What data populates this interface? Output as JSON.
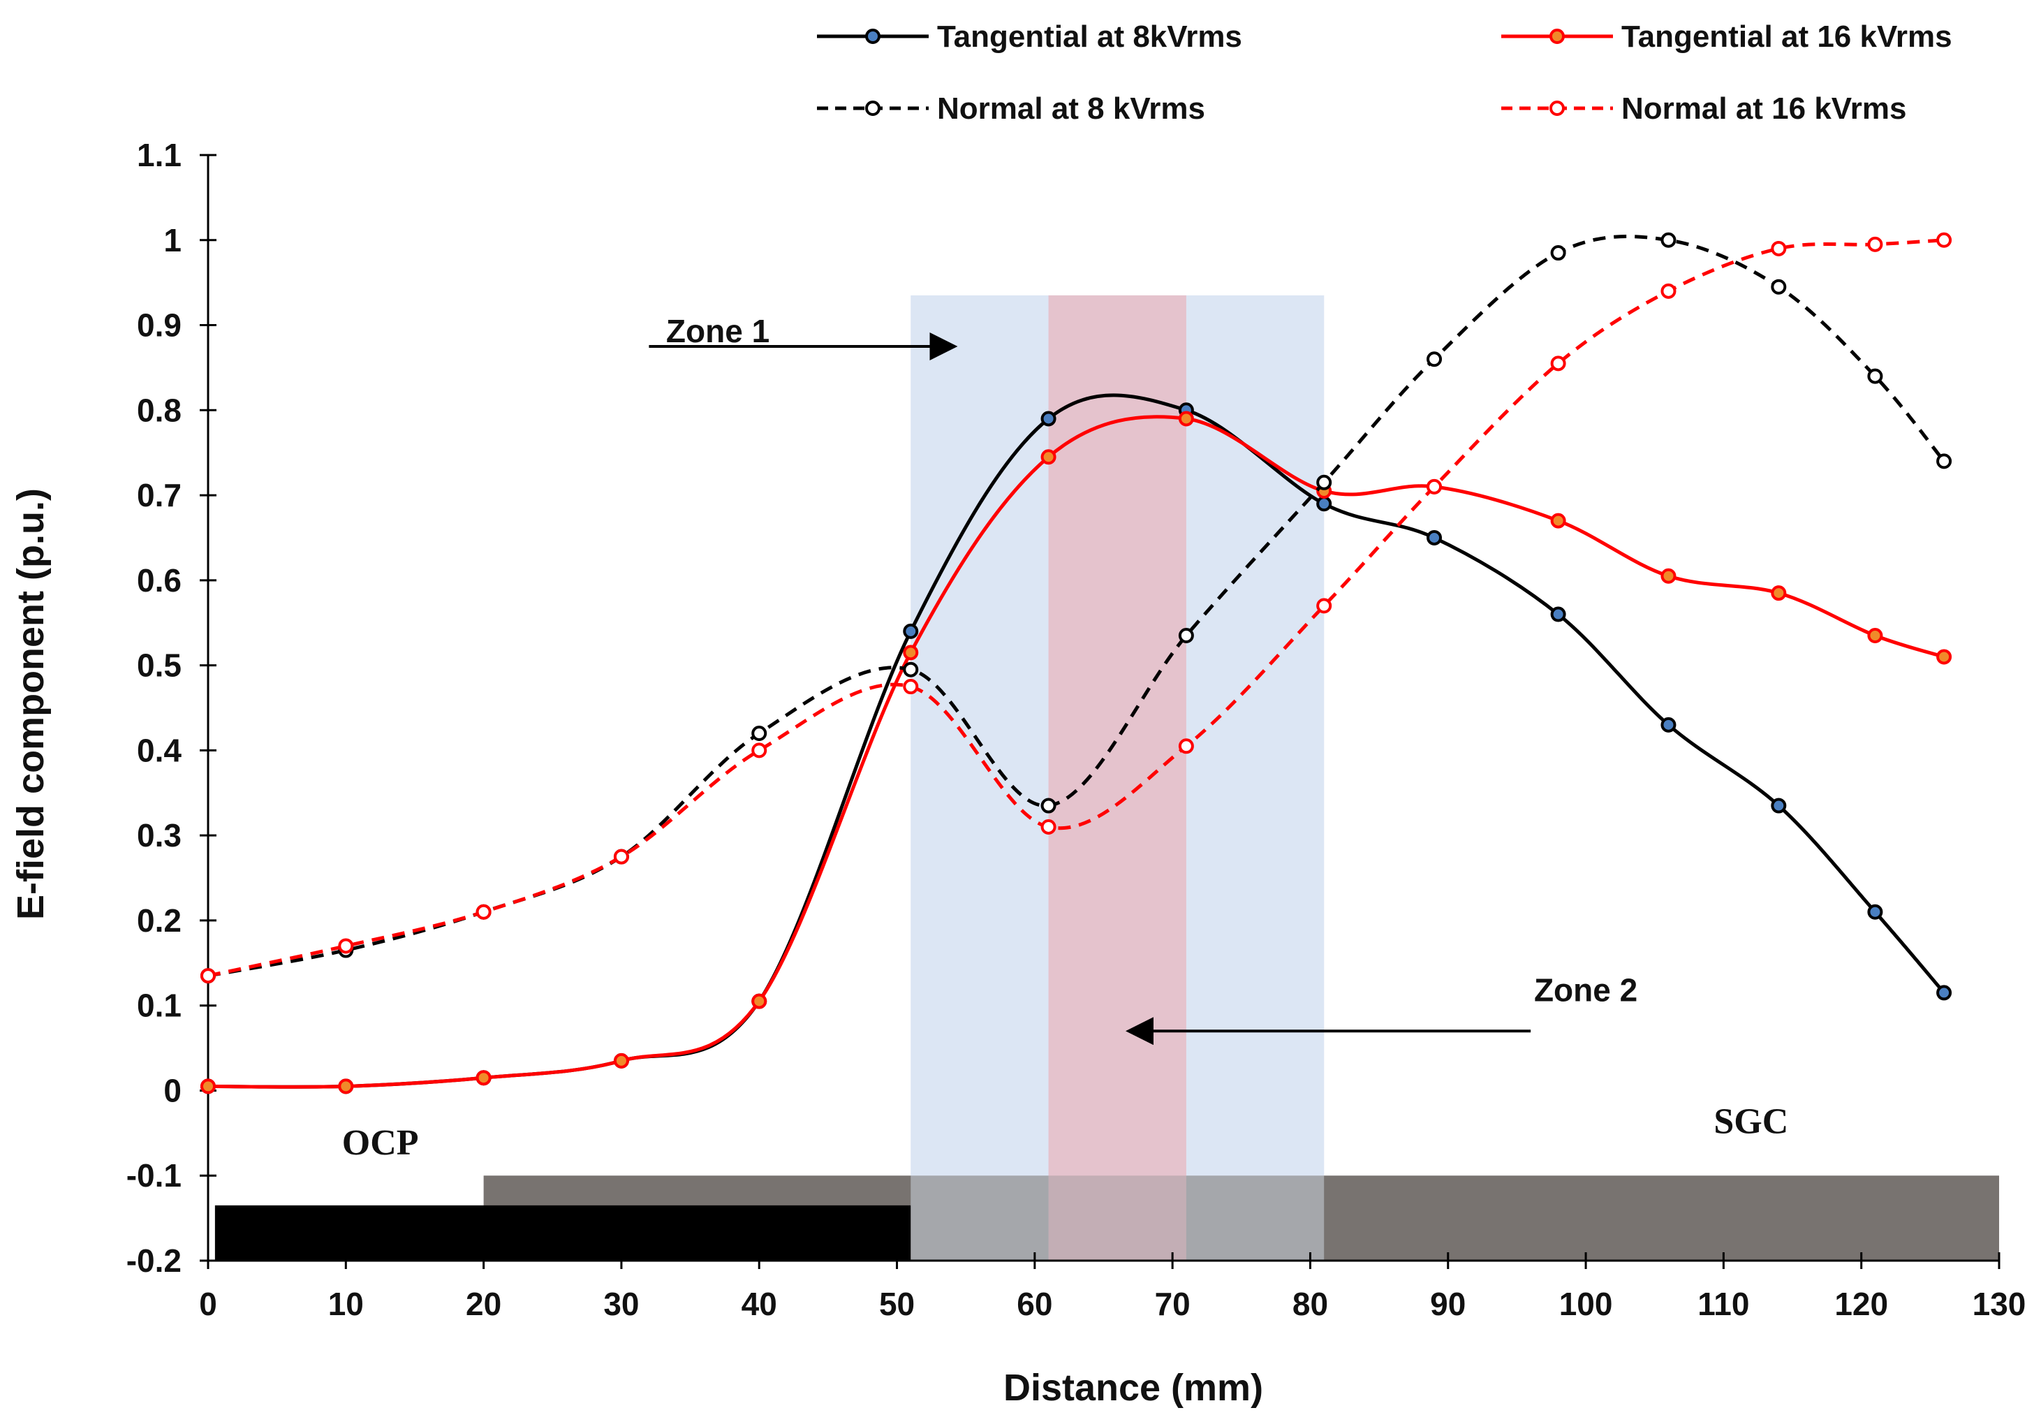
{
  "chart_data": {
    "type": "line",
    "title": "",
    "xlabel": "Distance (mm)",
    "ylabel": "E-field component (p.u.)",
    "xlim": [
      0,
      130
    ],
    "ylim": [
      -0.2,
      1.1
    ],
    "x_ticks": [
      "0",
      "10",
      "20",
      "30",
      "40",
      "50",
      "60",
      "70",
      "80",
      "90",
      "100",
      "110",
      "120",
      "130"
    ],
    "y_ticks": [
      "1.1",
      "1",
      "0.9",
      "0.8",
      "0.7",
      "0.6",
      "0.5",
      "0.4",
      "0.3",
      "0.2",
      "0.1",
      "0",
      "-0.1",
      "-0.2"
    ],
    "grid": false,
    "legend_position": "top",
    "series": [
      {
        "name": "Tangential at 8kVrms",
        "color": "#000000",
        "marker_fill": "#4a7fc1",
        "style": "solid",
        "x": [
          0,
          10,
          20,
          30,
          40,
          51,
          61,
          71,
          81,
          89,
          98,
          106,
          114,
          121,
          126
        ],
        "y": [
          0.005,
          0.005,
          0.015,
          0.035,
          0.105,
          0.54,
          0.79,
          0.8,
          0.69,
          0.65,
          0.56,
          0.43,
          0.335,
          0.21,
          0.115
        ]
      },
      {
        "name": "Tangential at 16 kVrms",
        "color": "#ff0000",
        "marker_fill": "#f08a2a",
        "style": "solid",
        "x": [
          0,
          10,
          20,
          30,
          40,
          51,
          61,
          71,
          81,
          89,
          98,
          106,
          114,
          121,
          126
        ],
        "y": [
          0.005,
          0.005,
          0.015,
          0.035,
          0.105,
          0.515,
          0.745,
          0.79,
          0.705,
          0.71,
          0.67,
          0.605,
          0.585,
          0.535,
          0.51
        ]
      },
      {
        "name": "Normal at 8 kVrms",
        "color": "#000000",
        "marker_fill": "#ffffff",
        "style": "dashed",
        "x": [
          0,
          10,
          20,
          30,
          40,
          51,
          61,
          71,
          81,
          89,
          98,
          106,
          114,
          121,
          126
        ],
        "y": [
          0.135,
          0.165,
          0.21,
          0.275,
          0.42,
          0.495,
          0.335,
          0.535,
          0.715,
          0.86,
          0.985,
          1.0,
          0.945,
          0.84,
          0.74
        ]
      },
      {
        "name": "Normal at 16 kVrms",
        "color": "#ff0000",
        "marker_fill": "#ffffff",
        "style": "dashed",
        "x": [
          0,
          10,
          20,
          30,
          40,
          51,
          61,
          71,
          81,
          89,
          98,
          106,
          114,
          121,
          126
        ],
        "y": [
          0.135,
          0.17,
          0.21,
          0.275,
          0.4,
          0.475,
          0.31,
          0.405,
          0.57,
          0.71,
          0.855,
          0.94,
          0.99,
          0.995,
          1.0
        ]
      }
    ],
    "regions": [
      {
        "name": "zone-1-band",
        "x": [
          51,
          81
        ],
        "y": [
          -0.2,
          0.935
        ],
        "color": "#dce6f4"
      },
      {
        "name": "zone-2-band",
        "x": [
          61,
          71
        ],
        "y": [
          -0.2,
          0.935
        ],
        "color": "#e8b9c2"
      }
    ],
    "bars": [
      {
        "name": "sgc-bar",
        "x": [
          20,
          130
        ],
        "y": [
          -0.2,
          -0.1
        ],
        "color": "#787370"
      },
      {
        "name": "ocp-bar",
        "x": [
          0.5,
          51
        ],
        "y": [
          -0.2,
          -0.135
        ],
        "color": "#000000"
      }
    ],
    "annotations": [
      {
        "name": "zone-1-label",
        "text": "Zone 1",
        "x": 37,
        "y": 0.88
      },
      {
        "name": "zone-2-label",
        "text": "Zone 2",
        "x": 100,
        "y": 0.105
      },
      {
        "name": "ocp-label",
        "text": "OCP",
        "x": 12.5,
        "y": -0.075
      },
      {
        "name": "sgc-label",
        "text": "SGC",
        "x": 112,
        "y": -0.05
      }
    ],
    "arrows": [
      {
        "name": "zone-1-arrow",
        "from": [
          32,
          0.875
        ],
        "to": [
          54,
          0.875
        ]
      },
      {
        "name": "zone-2-arrow",
        "from": [
          96,
          0.07
        ],
        "to": [
          67,
          0.07
        ]
      }
    ]
  }
}
